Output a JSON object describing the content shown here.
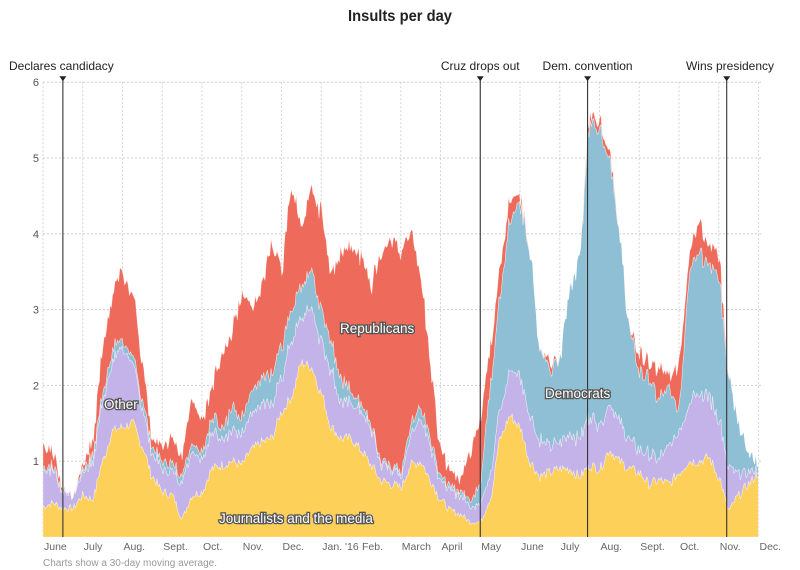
{
  "chart_data": {
    "type": "area",
    "stacked": true,
    "title": "Insults per day",
    "note": "Charts show a 30-day moving average.",
    "xlabel": "",
    "ylabel": "",
    "ylim": [
      0,
      6
    ],
    "yticks": [
      1,
      2,
      3,
      4,
      5,
      6
    ],
    "grid": true,
    "x_unit": "months since June 1, 2015",
    "x": [
      0,
      0.25,
      0.5,
      0.75,
      1,
      1.25,
      1.5,
      1.75,
      2,
      2.25,
      2.5,
      2.75,
      3,
      3.25,
      3.5,
      3.75,
      4,
      4.25,
      4.5,
      4.75,
      5,
      5.25,
      5.5,
      5.75,
      6,
      6.25,
      6.5,
      6.75,
      7,
      7.25,
      7.5,
      7.75,
      8,
      8.25,
      8.5,
      8.75,
      9,
      9.25,
      9.5,
      9.75,
      10,
      10.25,
      10.5,
      10.75,
      11,
      11.25,
      11.5,
      11.75,
      12,
      12.25,
      12.5,
      12.75,
      13,
      13.25,
      13.5,
      13.75,
      14,
      14.25,
      14.5,
      14.75,
      15,
      15.25,
      15.5,
      15.75,
      16,
      16.25,
      16.5,
      16.75,
      17,
      17.25,
      17.5,
      17.75,
      18
    ],
    "xticks": [
      {
        "label": "June",
        "at": 0
      },
      {
        "label": "July",
        "at": 1
      },
      {
        "label": "Aug.",
        "at": 2
      },
      {
        "label": "Sept.",
        "at": 3
      },
      {
        "label": "Oct.",
        "at": 4
      },
      {
        "label": "Nov.",
        "at": 5
      },
      {
        "label": "Dec.",
        "at": 6
      },
      {
        "label": "Jan. '16",
        "at": 7
      },
      {
        "label": "Feb.",
        "at": 8
      },
      {
        "label": "March",
        "at": 9
      },
      {
        "label": "April",
        "at": 10
      },
      {
        "label": "May",
        "at": 11
      },
      {
        "label": "June",
        "at": 12
      },
      {
        "label": "July",
        "at": 13
      },
      {
        "label": "Aug.",
        "at": 14
      },
      {
        "label": "Sept.",
        "at": 15
      },
      {
        "label": "Oct.",
        "at": 16
      },
      {
        "label": "Nov.",
        "at": 17
      },
      {
        "label": "Dec.",
        "at": 18
      }
    ],
    "events": [
      {
        "label": "Declares candidacy",
        "at": 0.5
      },
      {
        "label": "Cruz drops out",
        "at": 11.0
      },
      {
        "label": "Dem. convention",
        "at": 13.7
      },
      {
        "label": "Wins presidency",
        "at": 17.2
      }
    ],
    "series": [
      {
        "name": "Journalists and the media",
        "color": "#fdd05a",
        "values": [
          0.4,
          0.45,
          0.38,
          0.38,
          0.55,
          0.5,
          1.0,
          1.4,
          1.45,
          1.5,
          1.2,
          0.8,
          0.6,
          0.55,
          0.25,
          0.55,
          0.6,
          0.9,
          0.95,
          1.0,
          0.95,
          1.15,
          1.25,
          1.3,
          1.65,
          1.85,
          2.3,
          2.25,
          1.9,
          1.45,
          1.3,
          1.3,
          1.15,
          0.95,
          0.75,
          0.7,
          0.65,
          0.95,
          1.0,
          0.75,
          0.5,
          0.35,
          0.3,
          0.2,
          0.2,
          0.5,
          1.3,
          1.6,
          1.45,
          1.0,
          0.8,
          0.85,
          0.9,
          0.9,
          0.8,
          0.95,
          0.9,
          1.15,
          1.0,
          0.9,
          0.85,
          0.7,
          0.75,
          0.7,
          0.85,
          1.0,
          1.0,
          1.05,
          0.8,
          0.35,
          0.55,
          0.7,
          0.85
        ]
      },
      {
        "name": "Other",
        "color": "#c3b3e8",
        "values": [
          0.45,
          0.45,
          0.22,
          0.17,
          0.3,
          0.5,
          0.8,
          0.9,
          1.05,
          0.8,
          0.5,
          0.3,
          0.3,
          0.3,
          0.5,
          0.6,
          0.45,
          0.5,
          0.35,
          0.4,
          0.4,
          0.45,
          0.5,
          0.45,
          0.45,
          0.75,
          0.6,
          0.75,
          0.7,
          0.75,
          0.5,
          0.45,
          0.5,
          0.5,
          0.2,
          0.2,
          0.15,
          0.4,
          0.6,
          0.45,
          0.25,
          0.25,
          0.25,
          0.2,
          0.25,
          0.35,
          0.4,
          0.6,
          0.65,
          0.6,
          0.5,
          0.35,
          0.35,
          0.45,
          0.5,
          0.65,
          0.6,
          0.6,
          0.5,
          0.4,
          0.3,
          0.4,
          0.3,
          0.5,
          0.55,
          0.8,
          0.9,
          0.8,
          0.8,
          0.55,
          0.3,
          0.15,
          0.05
        ]
      },
      {
        "name": "Democrats",
        "color": "#8fbfd4",
        "values": [
          0.05,
          0.05,
          0.02,
          0.0,
          0.05,
          0.1,
          0.1,
          0.15,
          0.1,
          0.1,
          0.1,
          0.1,
          0.1,
          0.1,
          0.1,
          0.1,
          0.1,
          0.2,
          0.15,
          0.3,
          0.2,
          0.3,
          0.35,
          0.4,
          0.45,
          0.4,
          0.4,
          0.5,
          0.4,
          0.4,
          0.3,
          0.15,
          0.1,
          0.05,
          0.05,
          0.05,
          0.05,
          0.15,
          0.15,
          0.1,
          0.05,
          0.05,
          0.05,
          0.1,
          0.25,
          1.15,
          1.5,
          2.0,
          2.3,
          2.2,
          1.2,
          1.0,
          1.05,
          1.95,
          2.4,
          3.9,
          3.9,
          3.25,
          2.5,
          1.5,
          1.05,
          1.0,
          0.75,
          0.75,
          0.3,
          1.7,
          1.9,
          1.75,
          1.9,
          1.2,
          0.65,
          0.25,
          0.1
        ]
      },
      {
        "name": "Republicans",
        "color": "#ee6b5b",
        "values": [
          0.3,
          0.2,
          0.03,
          0.0,
          0.05,
          0.2,
          0.6,
          0.75,
          0.9,
          0.8,
          0.5,
          0.1,
          0.2,
          0.35,
          0.25,
          0.6,
          0.45,
          0.4,
          0.95,
          1.0,
          1.65,
          1.1,
          1.2,
          1.7,
          1.05,
          1.6,
          0.8,
          1.05,
          1.3,
          0.9,
          1.65,
          1.9,
          1.95,
          1.85,
          2.7,
          3.0,
          2.9,
          2.55,
          1.75,
          1.0,
          0.35,
          0.2,
          0.15,
          0.65,
          0.85,
          0.5,
          0.4,
          0.25,
          0.1,
          0.0,
          0.0,
          0.1,
          0.0,
          0.0,
          0.0,
          0.1,
          0.1,
          0.1,
          0.0,
          0.0,
          0.25,
          0.2,
          0.4,
          0.15,
          0.6,
          0.25,
          0.4,
          0.25,
          0.3,
          0.0,
          0.0,
          0.0,
          0.0
        ]
      }
    ],
    "annotations": [
      {
        "text": "Republicans",
        "series": "Republicans"
      },
      {
        "text": "Other",
        "series": "Other"
      },
      {
        "text": "Democrats",
        "series": "Democrats"
      },
      {
        "text": "Journalists and the media",
        "series": "Journalists and the media"
      }
    ]
  }
}
